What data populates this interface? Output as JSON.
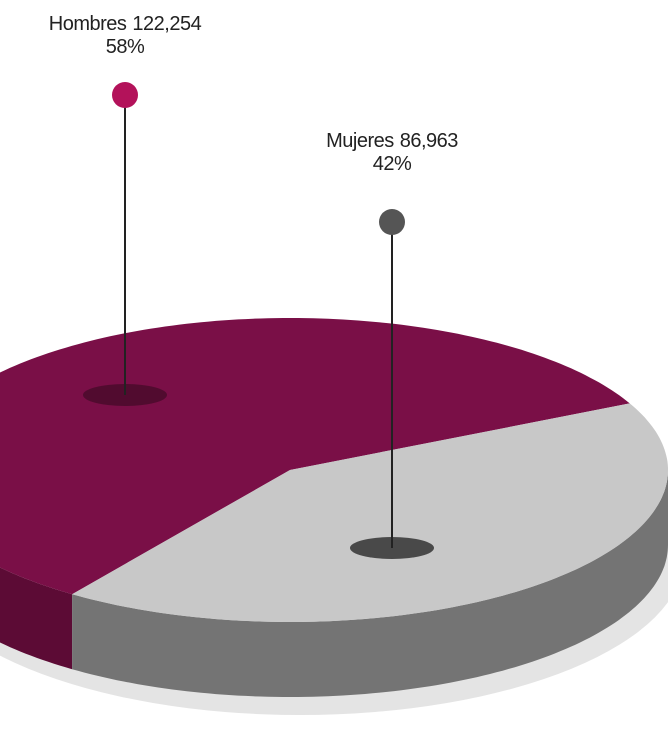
{
  "chart_data": {
    "type": "pie",
    "categories": [
      "Hombres",
      "Mujeres"
    ],
    "values": [
      58,
      42
    ],
    "value_labels": [
      "58%",
      "42%"
    ],
    "counts": [
      122254,
      86963
    ],
    "count_labels": [
      "122,254",
      "86,963"
    ],
    "colors": [
      "#7a0f47",
      "#c8c8c8"
    ]
  }
}
